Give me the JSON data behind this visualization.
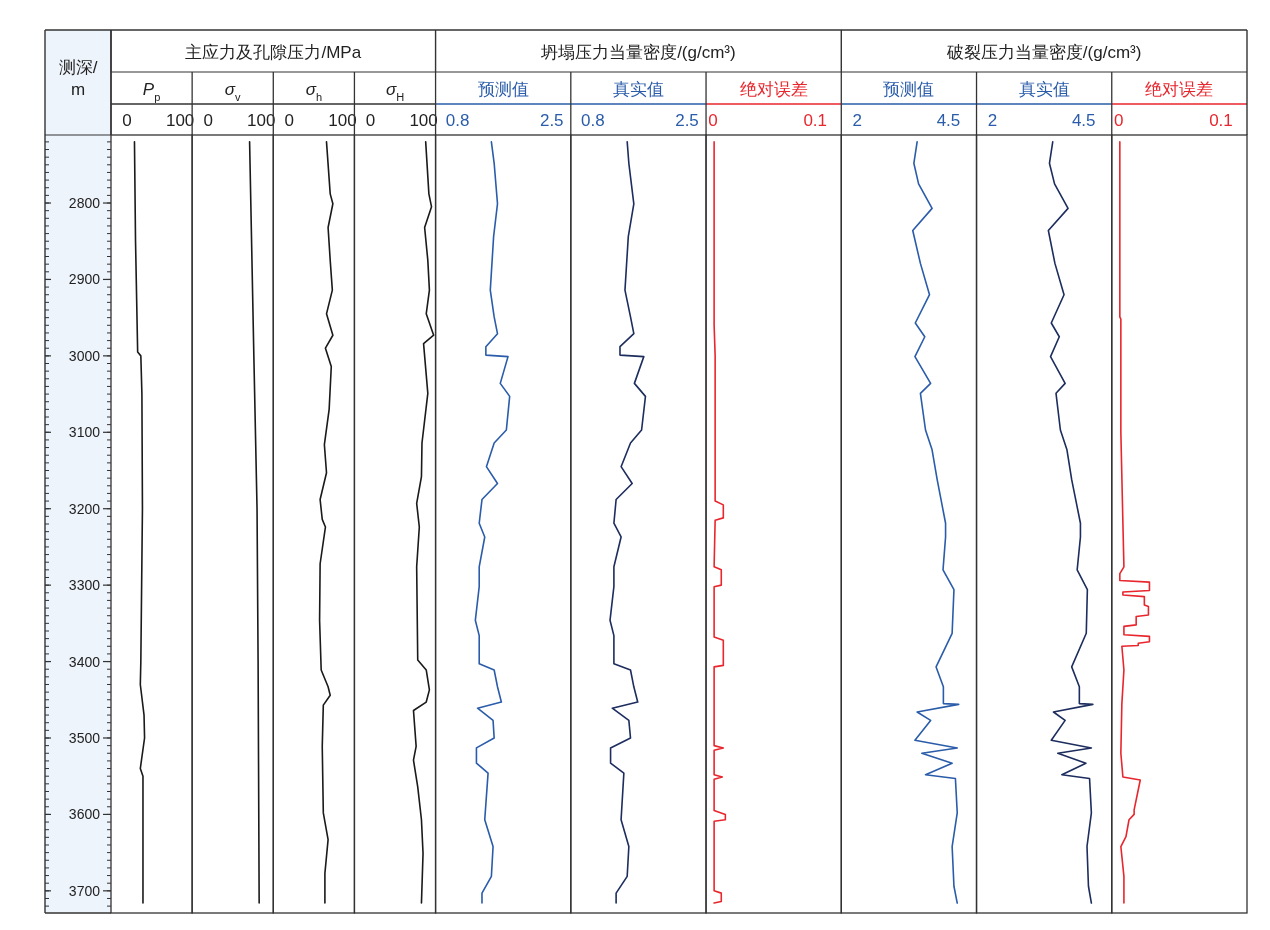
{
  "chart_data": [
    {
      "type": "line",
      "orientation": "horizontal",
      "xlabel": "P$_{p}$",
      "ylabel": "测深/m",
      "xlim": [
        -30.2,
        122.6
      ],
      "xticks": [
        0,
        100
      ],
      "ylim": [
        3729,
        2711
      ],
      "yticks": [
        2800,
        2900,
        3000,
        3100,
        3200,
        3300,
        3400,
        3500,
        3600,
        3700
      ],
      "series": [
        {
          "color": "#1a1a1a",
          "x": [
            2720,
            2850,
            2995,
            3000,
            3050,
            3200,
            3400,
            3430,
            3470,
            3500,
            3540,
            3550,
            3700,
            3716
          ],
          "values": [
            14,
            16,
            20,
            26,
            28,
            29,
            26,
            25,
            32,
            33,
            25,
            30,
            30,
            30
          ]
        }
      ]
    },
    {
      "type": "line",
      "orientation": "horizontal",
      "title": "主应力及孔隙压力/MPa",
      "xlabel": "σ$_{v}$",
      "xlim": [
        -30.2,
        122.6
      ],
      "xticks": [
        0,
        100
      ],
      "ylim": [
        3729,
        2711
      ],
      "tick_labels": "x",
      "series": [
        {
          "color": "#1a1a1a",
          "x": [
            2720,
            3000,
            3200,
            3400,
            3716
          ],
          "values": [
            78,
            86,
            92,
            94,
            96
          ]
        }
      ]
    },
    {
      "type": "line",
      "orientation": "horizontal",
      "xlabel": "σ$_{h}$",
      "xlim": [
        -30.2,
        122.6
      ],
      "xticks": [
        0,
        100
      ],
      "ylim": [
        3729,
        2711
      ],
      "tick_labels": "x",
      "series": [
        {
          "color": "#1a1a1a",
          "x": [
            2720,
            2788,
            2801,
            2832,
            2875,
            2914,
            2945,
            2973,
            2990,
            3014,
            3070,
            3116,
            3153,
            3188,
            3214,
            3224,
            3272,
            3346,
            3411,
            3433,
            3444,
            3457,
            3511,
            3598,
            3633,
            3677,
            3716
          ],
          "values": [
            70,
            77,
            82,
            73,
            77,
            81,
            70,
            82,
            68,
            79,
            75,
            66,
            70,
            58,
            62,
            68,
            58,
            57,
            60,
            73,
            77,
            64,
            62,
            64,
            73,
            67,
            67
          ]
        }
      ]
    },
    {
      "type": "line",
      "orientation": "horizontal",
      "xlabel": "σ$_{H}$",
      "xlim": [
        -30.2,
        122.6
      ],
      "xticks": [
        0,
        100
      ],
      "ylim": [
        3729,
        2711
      ],
      "tick_labels": "x",
      "series": [
        {
          "color": "#1a1a1a",
          "x": [
            2720,
            2788,
            2805,
            2832,
            2875,
            2914,
            2945,
            2973,
            2984,
            3049,
            3114,
            3158,
            3193,
            3224,
            3276,
            3398,
            3411,
            3437,
            3453,
            3464,
            3511,
            3529,
            3564,
            3607,
            3651,
            3716
          ],
          "values": [
            104,
            110,
            115,
            102,
            108,
            111,
            105,
            119,
            100,
            108,
            97,
            96,
            87,
            92,
            87,
            89,
            105,
            111,
            105,
            81,
            86,
            81,
            89,
            96,
            99,
            96
          ]
        }
      ]
    },
    {
      "type": "line",
      "orientation": "horizontal",
      "xlabel": "预测值",
      "xlim": [
        0.402,
        2.844
      ],
      "xticks": [
        0.8,
        2.5
      ],
      "ylim": [
        3729,
        2711
      ],
      "tick_labels": "x",
      "series": [
        {
          "color": "#2a5caa",
          "x": [
            2720,
            2748,
            2801,
            2844,
            2914,
            2949,
            2971,
            2988,
            2999,
            3001,
            3036,
            3053,
            3097,
            3114,
            3145,
            3167,
            3188,
            3219,
            3237,
            3276,
            3302,
            3346,
            3366,
            3403,
            3411,
            3433,
            3453,
            3461,
            3477,
            3500,
            3513,
            3533,
            3546,
            3607,
            3642,
            3681,
            3703,
            3716
          ],
          "values": [
            1.41,
            1.46,
            1.52,
            1.45,
            1.39,
            1.46,
            1.52,
            1.31,
            1.31,
            1.71,
            1.57,
            1.74,
            1.68,
            1.46,
            1.32,
            1.52,
            1.24,
            1.19,
            1.29,
            1.19,
            1.19,
            1.12,
            1.19,
            1.19,
            1.46,
            1.52,
            1.59,
            1.16,
            1.44,
            1.46,
            1.14,
            1.14,
            1.35,
            1.29,
            1.44,
            1.41,
            1.24,
            1.24
          ]
        }
      ]
    },
    {
      "type": "line",
      "orientation": "horizontal",
      "title": "坍塌压力当量密度/(g/cm³)",
      "xlabel": "真实值",
      "xlim": [
        0.402,
        2.844
      ],
      "xticks": [
        0.8,
        2.5
      ],
      "ylim": [
        3729,
        2711
      ],
      "tick_labels": "x",
      "series": [
        {
          "color": "#1c2d5e",
          "x": [
            2720,
            2748,
            2801,
            2844,
            2914,
            2949,
            2971,
            2988,
            2999,
            3001,
            3036,
            3053,
            3097,
            3114,
            3145,
            3167,
            3188,
            3219,
            3237,
            3276,
            3302,
            3346,
            3366,
            3403,
            3411,
            3433,
            3453,
            3461,
            3477,
            3500,
            3513,
            3533,
            3546,
            3607,
            3642,
            3681,
            3703,
            3716
          ],
          "values": [
            1.42,
            1.45,
            1.54,
            1.44,
            1.38,
            1.48,
            1.54,
            1.29,
            1.29,
            1.72,
            1.55,
            1.75,
            1.68,
            1.48,
            1.31,
            1.51,
            1.22,
            1.18,
            1.31,
            1.18,
            1.18,
            1.11,
            1.18,
            1.18,
            1.48,
            1.54,
            1.61,
            1.15,
            1.45,
            1.48,
            1.12,
            1.12,
            1.36,
            1.31,
            1.45,
            1.42,
            1.22,
            1.22
          ]
        }
      ]
    },
    {
      "type": "line",
      "orientation": "horizontal",
      "xlabel": "绝对误差",
      "xlim": [
        -0.0069,
        0.1255
      ],
      "xticks": [
        0,
        0.1
      ],
      "ylim": [
        3729,
        2711
      ],
      "tick_labels": "x",
      "series": [
        {
          "color": "#e8262d",
          "x": [
            2720,
            2960,
            3000,
            3190,
            3195,
            3212,
            3215,
            3276,
            3280,
            3300,
            3302,
            3368,
            3372,
            3405,
            3407,
            3510,
            3513,
            3516,
            3548,
            3551,
            3554,
            3595,
            3600,
            3607,
            3609,
            3700,
            3703,
            3714,
            3716
          ],
          "values": [
            0.001,
            0.001,
            0.002,
            0.002,
            0.01,
            0.01,
            0.002,
            0.001,
            0.008,
            0.008,
            0.001,
            0.001,
            0.01,
            0.01,
            0.001,
            0.001,
            0.01,
            0.001,
            0.001,
            0.009,
            0.001,
            0.001,
            0.012,
            0.012,
            0.001,
            0.001,
            0.008,
            0.008,
            0.001
          ]
        }
      ]
    },
    {
      "type": "line",
      "orientation": "horizontal",
      "xlabel": "预测值",
      "xlim": [
        1.56,
        5.269
      ],
      "xticks": [
        2,
        4.5
      ],
      "ylim": [
        3729,
        2711
      ],
      "tick_labels": "x",
      "series": [
        {
          "color": "#2a5caa",
          "x": [
            2720,
            2748,
            2775,
            2807,
            2836,
            2879,
            2920,
            2957,
            2975,
            3001,
            3036,
            3049,
            3097,
            3123,
            3162,
            3219,
            3237,
            3280,
            3306,
            3363,
            3407,
            3433,
            3455,
            3456,
            3466,
            3477,
            3503,
            3513,
            3520,
            3533,
            3548,
            3553,
            3598,
            3642,
            3694,
            3716
          ],
          "values": [
            3.64,
            3.55,
            3.68,
            4.05,
            3.52,
            3.73,
            3.98,
            3.59,
            3.85,
            3.58,
            4.01,
            3.73,
            3.87,
            4.05,
            4.19,
            4.42,
            4.42,
            4.35,
            4.65,
            4.6,
            4.16,
            4.36,
            4.36,
            4.78,
            3.64,
            4.01,
            3.58,
            4.74,
            3.77,
            4.6,
            3.87,
            4.69,
            4.74,
            4.6,
            4.65,
            4.74
          ]
        }
      ]
    },
    {
      "type": "line",
      "orientation": "horizontal",
      "title": "破裂压力当量密度/(g/cm³)",
      "xlabel": "真实值",
      "xlim": [
        1.56,
        5.269
      ],
      "xticks": [
        2,
        4.5
      ],
      "ylim": [
        3729,
        2711
      ],
      "tick_labels": "x",
      "series": [
        {
          "color": "#1c2d5e",
          "x": [
            2720,
            2748,
            2775,
            2807,
            2836,
            2879,
            2920,
            2957,
            2975,
            3001,
            3036,
            3049,
            3097,
            3123,
            3162,
            3219,
            3237,
            3280,
            3306,
            3363,
            3407,
            3433,
            3455,
            3456,
            3466,
            3477,
            3503,
            3513,
            3520,
            3533,
            3548,
            3553,
            3598,
            3642,
            3694,
            3716
          ],
          "values": [
            3.65,
            3.56,
            3.7,
            4.07,
            3.53,
            3.71,
            3.96,
            3.61,
            3.83,
            3.59,
            3.99,
            3.74,
            3.86,
            4.04,
            4.17,
            4.41,
            4.41,
            4.32,
            4.6,
            4.57,
            4.17,
            4.38,
            4.38,
            4.75,
            3.67,
            3.99,
            3.61,
            4.71,
            3.79,
            4.56,
            3.9,
            4.66,
            4.71,
            4.59,
            4.63,
            4.71
          ]
        }
      ]
    },
    {
      "type": "line",
      "orientation": "horizontal",
      "xlabel": "绝对误差",
      "xlim": [
        -0.0069,
        0.1255
      ],
      "xticks": [
        0,
        0.1
      ],
      "ylim": [
        3729,
        2711
      ],
      "tick_labels": "x",
      "series": [
        {
          "color": "#e8262d",
          "x": [
            2720,
            2949,
            2952,
            3100,
            3219,
            3276,
            3285,
            3294,
            3296,
            3307,
            3309,
            3313,
            3315,
            3326,
            3328,
            3339,
            3341,
            3352,
            3354,
            3365,
            3367,
            3374,
            3376,
            3379,
            3380,
            3411,
            3455,
            3520,
            3551,
            3555,
            3594,
            3600,
            3607,
            3629,
            3642,
            3681,
            3716
          ],
          "values": [
            0.001,
            0.001,
            0.002,
            0.002,
            0.004,
            0.005,
            0.001,
            0.001,
            0.03,
            0.03,
            0.004,
            0.004,
            0.025,
            0.025,
            0.029,
            0.029,
            0.017,
            0.017,
            0.005,
            0.005,
            0.03,
            0.03,
            0.019,
            0.019,
            0.003,
            0.005,
            0.003,
            0.002,
            0.004,
            0.021,
            0.015,
            0.015,
            0.01,
            0.007,
            0.002,
            0.005,
            0.005
          ]
        }
      ]
    }
  ]
}
